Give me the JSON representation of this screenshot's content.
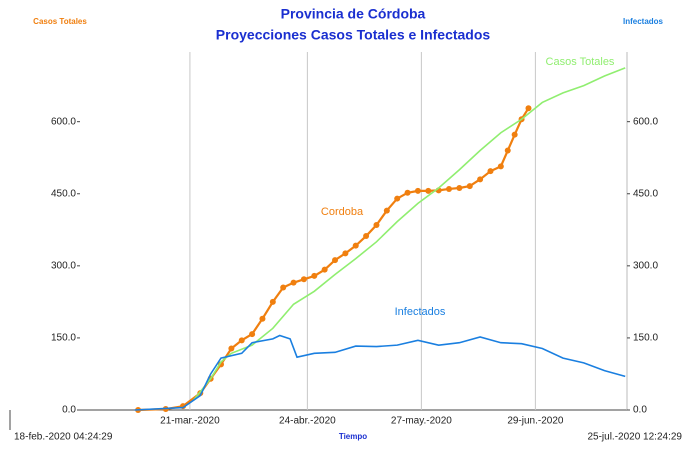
{
  "chart_data": {
    "type": "line",
    "title": "Provincia de Córdoba",
    "subtitle": "Proyecciones Casos Totales e Infectados",
    "y_label": "Casos Totales",
    "y2_label": "Infectados",
    "x_label": "Tiempo",
    "xlim": [
      {
        "value": "2020-02-18T04:24:29",
        "label": "18-feb.-2020 04:24:29"
      },
      {
        "value": "2020-07-25T12:24:29",
        "label": "25-jul.-2020 12:24:29"
      }
    ],
    "xticks": [
      {
        "value": "2020-03-21",
        "label": "21-mar.-2020"
      },
      {
        "value": "2020-04-24",
        "label": "24-abr.-2020"
      },
      {
        "value": "2020-05-27",
        "label": "27-may.-2020"
      },
      {
        "value": "2020-06-29",
        "label": "29-jun.-2020"
      }
    ],
    "ylim": [
      0,
      745
    ],
    "yticks": [
      {
        "value": 0,
        "label": "0.0"
      },
      {
        "value": 150,
        "label": "150.0"
      },
      {
        "value": 300,
        "label": "300.0"
      },
      {
        "value": 450,
        "label": "450.0"
      },
      {
        "value": 600,
        "label": "600.0"
      }
    ],
    "y2lim": [
      0,
      745
    ],
    "y2ticks": [
      {
        "value": 0,
        "label": "0.0"
      },
      {
        "value": 150,
        "label": "150.0"
      },
      {
        "value": 300,
        "label": "300.0"
      },
      {
        "value": 450,
        "label": "450.0"
      },
      {
        "value": 600,
        "label": "600.0"
      }
    ],
    "grid": true,
    "series": [
      {
        "name": "Cordoba",
        "color": "#f07f0f",
        "markers": true,
        "x": [
          "2020-03-06",
          "2020-03-14",
          "2020-03-19",
          "2020-03-24",
          "2020-03-27",
          "2020-03-30",
          "2020-04-02",
          "2020-04-05",
          "2020-04-08",
          "2020-04-11",
          "2020-04-14",
          "2020-04-17",
          "2020-04-20",
          "2020-04-23",
          "2020-04-26",
          "2020-04-29",
          "2020-05-02",
          "2020-05-05",
          "2020-05-08",
          "2020-05-11",
          "2020-05-14",
          "2020-05-17",
          "2020-05-20",
          "2020-05-23",
          "2020-05-26",
          "2020-05-29",
          "2020-06-01",
          "2020-06-04",
          "2020-06-07",
          "2020-06-10",
          "2020-06-13",
          "2020-06-16",
          "2020-06-19",
          "2020-06-21",
          "2020-06-23",
          "2020-06-25",
          "2020-06-27"
        ],
        "values": [
          0,
          2,
          8,
          35,
          65,
          95,
          128,
          145,
          158,
          190,
          225,
          255,
          265,
          272,
          279,
          292,
          312,
          326,
          342,
          362,
          385,
          415,
          440,
          452,
          456,
          456,
          457,
          460,
          462,
          466,
          480,
          497,
          507,
          540,
          573,
          605,
          628
        ]
      },
      {
        "name": "Casos Totales",
        "color": "#90ee70",
        "markers": false,
        "x": [
          "2020-03-22",
          "2020-03-27",
          "2020-03-30",
          "2020-04-02",
          "2020-04-08",
          "2020-04-14",
          "2020-04-20",
          "2020-04-26",
          "2020-05-02",
          "2020-05-08",
          "2020-05-14",
          "2020-05-20",
          "2020-05-26",
          "2020-06-01",
          "2020-06-07",
          "2020-06-13",
          "2020-06-19",
          "2020-06-25",
          "2020-07-01",
          "2020-07-07",
          "2020-07-13",
          "2020-07-19",
          "2020-07-25"
        ],
        "values": [
          20,
          65,
          100,
          118,
          135,
          170,
          220,
          247,
          282,
          315,
          350,
          392,
          430,
          462,
          500,
          540,
          577,
          605,
          640,
          660,
          675,
          695,
          712
        ]
      },
      {
        "name": "Infectados",
        "color": "#1a7fe0",
        "markers": false,
        "axis": "y2",
        "x": [
          "2020-03-05",
          "2020-03-19",
          "2020-03-24",
          "2020-03-27",
          "2020-03-30",
          "2020-04-05",
          "2020-04-08",
          "2020-04-14",
          "2020-04-16",
          "2020-04-19",
          "2020-04-21",
          "2020-04-26",
          "2020-05-02",
          "2020-05-08",
          "2020-05-14",
          "2020-05-20",
          "2020-05-26",
          "2020-06-01",
          "2020-06-07",
          "2020-06-13",
          "2020-06-19",
          "2020-06-25",
          "2020-07-01",
          "2020-07-07",
          "2020-07-13",
          "2020-07-19",
          "2020-07-25"
        ],
        "values": [
          0,
          5,
          30,
          75,
          108,
          118,
          140,
          148,
          155,
          148,
          110,
          118,
          120,
          133,
          132,
          135,
          145,
          135,
          140,
          152,
          140,
          138,
          128,
          108,
          98,
          82,
          70
        ]
      }
    ]
  }
}
